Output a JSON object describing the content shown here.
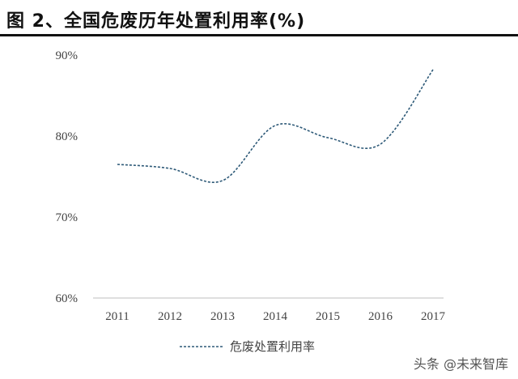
{
  "title": "图 2、全国危废历年处置利用率(%)",
  "watermark": "头条 @未来智库",
  "chart_data": {
    "type": "line",
    "title": "图 2、全国危废历年处置利用率(%)",
    "categories": [
      "2011",
      "2012",
      "2013",
      "2014",
      "2015",
      "2016",
      "2017"
    ],
    "series": [
      {
        "name": "危废处置利用率",
        "values": [
          76.5,
          76.0,
          74.5,
          81.3,
          79.8,
          79.0,
          88.2
        ]
      }
    ],
    "y_ticks": [
      "60%",
      "70%",
      "80%",
      "90%"
    ],
    "ylim": [
      60,
      90
    ],
    "grid": false,
    "legend": "bottom",
    "line_color": "#2e5a78",
    "line_style": "dashed"
  }
}
